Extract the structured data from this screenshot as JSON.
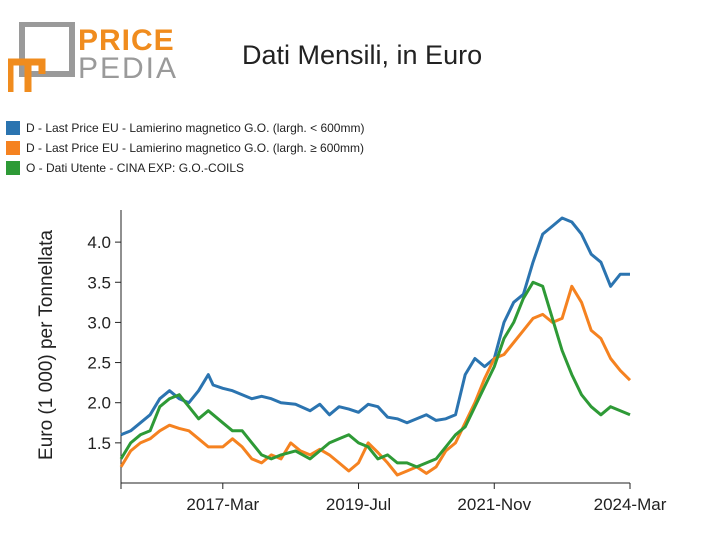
{
  "logo": {
    "line1": "PRICE",
    "line2": "PEDIA",
    "accent_color": "#f08c1e",
    "grey_color": "#9a9a9a"
  },
  "title": "Dati Mensili, in Euro",
  "legend": [
    {
      "label": "D - Last Price EU - Lamierino magnetico G.O. (largh. < 600mm)",
      "color": "#2b74b0"
    },
    {
      "label": "D - Last Price EU - Lamierino magnetico G.O. (largh. ≥ 600mm)",
      "color": "#f58220"
    },
    {
      "label": "O - Dati Utente - CINA EXP: G.O.-COILS",
      "color": "#2e9a36"
    }
  ],
  "chart_data": {
    "type": "line",
    "title": "Dati Mensili, in Euro",
    "ylabel": "Euro (1 000) per Tonnellata",
    "xlabel": "",
    "ylim": [
      1.0,
      4.4
    ],
    "y_ticks": [
      "1.5",
      "2.0",
      "2.5",
      "3.0",
      "3.5",
      "4.0"
    ],
    "x_ticks": [
      {
        "label": "2017-Mar",
        "date": "2017-03"
      },
      {
        "label": "2019-Jul",
        "date": "2019-07"
      },
      {
        "label": "2021-Nov",
        "date": "2021-11"
      },
      {
        "label": "2024-Mar",
        "date": "2024-03"
      }
    ],
    "xlim": [
      "2015-06",
      "2024-03"
    ],
    "grid": false,
    "legend_position": "top-left",
    "series": [
      {
        "name": "D - Last Price EU - Lamierino magnetico G.O. (largh. < 600mm)",
        "color": "#2b74b0",
        "points": [
          [
            "2015-06",
            1.6
          ],
          [
            "2015-08",
            1.65
          ],
          [
            "2015-10",
            1.75
          ],
          [
            "2015-12",
            1.85
          ],
          [
            "2016-02",
            2.05
          ],
          [
            "2016-04",
            2.15
          ],
          [
            "2016-06",
            2.05
          ],
          [
            "2016-08",
            2.0
          ],
          [
            "2016-10",
            2.15
          ],
          [
            "2016-12",
            2.35
          ],
          [
            "2017-01",
            2.22
          ],
          [
            "2017-03",
            2.18
          ],
          [
            "2017-05",
            2.15
          ],
          [
            "2017-07",
            2.1
          ],
          [
            "2017-09",
            2.05
          ],
          [
            "2017-11",
            2.08
          ],
          [
            "2018-01",
            2.05
          ],
          [
            "2018-03",
            2.0
          ],
          [
            "2018-06",
            1.98
          ],
          [
            "2018-09",
            1.9
          ],
          [
            "2018-11",
            1.98
          ],
          [
            "2019-01",
            1.85
          ],
          [
            "2019-03",
            1.95
          ],
          [
            "2019-05",
            1.92
          ],
          [
            "2019-07",
            1.88
          ],
          [
            "2019-09",
            1.98
          ],
          [
            "2019-11",
            1.95
          ],
          [
            "2020-01",
            1.82
          ],
          [
            "2020-03",
            1.8
          ],
          [
            "2020-05",
            1.75
          ],
          [
            "2020-07",
            1.8
          ],
          [
            "2020-09",
            1.85
          ],
          [
            "2020-11",
            1.78
          ],
          [
            "2021-01",
            1.8
          ],
          [
            "2021-03",
            1.85
          ],
          [
            "2021-05",
            2.35
          ],
          [
            "2021-07",
            2.55
          ],
          [
            "2021-09",
            2.45
          ],
          [
            "2021-11",
            2.55
          ],
          [
            "2022-01",
            3.0
          ],
          [
            "2022-03",
            3.25
          ],
          [
            "2022-05",
            3.35
          ],
          [
            "2022-07",
            3.75
          ],
          [
            "2022-09",
            4.1
          ],
          [
            "2022-11",
            4.2
          ],
          [
            "2023-01",
            4.3
          ],
          [
            "2023-03",
            4.25
          ],
          [
            "2023-05",
            4.1
          ],
          [
            "2023-07",
            3.85
          ],
          [
            "2023-09",
            3.75
          ],
          [
            "2023-11",
            3.45
          ],
          [
            "2024-01",
            3.6
          ],
          [
            "2024-03",
            3.6
          ]
        ]
      },
      {
        "name": "D - Last Price EU - Lamierino magnetico G.O. (largh. ≥ 600mm)",
        "color": "#f58220",
        "points": [
          [
            "2015-06",
            1.2
          ],
          [
            "2015-08",
            1.4
          ],
          [
            "2015-10",
            1.5
          ],
          [
            "2015-12",
            1.55
          ],
          [
            "2016-02",
            1.65
          ],
          [
            "2016-04",
            1.72
          ],
          [
            "2016-06",
            1.68
          ],
          [
            "2016-08",
            1.65
          ],
          [
            "2016-10",
            1.55
          ],
          [
            "2016-12",
            1.45
          ],
          [
            "2017-03",
            1.45
          ],
          [
            "2017-05",
            1.55
          ],
          [
            "2017-07",
            1.45
          ],
          [
            "2017-09",
            1.3
          ],
          [
            "2017-11",
            1.25
          ],
          [
            "2018-01",
            1.35
          ],
          [
            "2018-03",
            1.3
          ],
          [
            "2018-05",
            1.5
          ],
          [
            "2018-07",
            1.4
          ],
          [
            "2018-09",
            1.35
          ],
          [
            "2018-11",
            1.42
          ],
          [
            "2019-01",
            1.35
          ],
          [
            "2019-03",
            1.25
          ],
          [
            "2019-05",
            1.15
          ],
          [
            "2019-07",
            1.25
          ],
          [
            "2019-09",
            1.5
          ],
          [
            "2019-11",
            1.38
          ],
          [
            "2020-01",
            1.25
          ],
          [
            "2020-03",
            1.1
          ],
          [
            "2020-05",
            1.15
          ],
          [
            "2020-07",
            1.2
          ],
          [
            "2020-09",
            1.12
          ],
          [
            "2020-11",
            1.2
          ],
          [
            "2021-01",
            1.4
          ],
          [
            "2021-03",
            1.5
          ],
          [
            "2021-05",
            1.75
          ],
          [
            "2021-07",
            2.0
          ],
          [
            "2021-09",
            2.3
          ],
          [
            "2021-11",
            2.55
          ],
          [
            "2022-01",
            2.6
          ],
          [
            "2022-03",
            2.75
          ],
          [
            "2022-05",
            2.9
          ],
          [
            "2022-07",
            3.05
          ],
          [
            "2022-09",
            3.1
          ],
          [
            "2022-11",
            3.0
          ],
          [
            "2023-01",
            3.05
          ],
          [
            "2023-03",
            3.45
          ],
          [
            "2023-05",
            3.25
          ],
          [
            "2023-07",
            2.9
          ],
          [
            "2023-09",
            2.8
          ],
          [
            "2023-11",
            2.55
          ],
          [
            "2024-01",
            2.4
          ],
          [
            "2024-03",
            2.28
          ]
        ]
      },
      {
        "name": "O - Dati Utente - CINA EXP: G.O.-COILS",
        "color": "#2e9a36",
        "points": [
          [
            "2015-06",
            1.3
          ],
          [
            "2015-08",
            1.5
          ],
          [
            "2015-10",
            1.6
          ],
          [
            "2015-12",
            1.65
          ],
          [
            "2016-02",
            1.95
          ],
          [
            "2016-04",
            2.05
          ],
          [
            "2016-06",
            2.1
          ],
          [
            "2016-08",
            1.95
          ],
          [
            "2016-10",
            1.8
          ],
          [
            "2016-12",
            1.9
          ],
          [
            "2017-03",
            1.75
          ],
          [
            "2017-05",
            1.65
          ],
          [
            "2017-07",
            1.65
          ],
          [
            "2017-09",
            1.5
          ],
          [
            "2017-11",
            1.35
          ],
          [
            "2018-01",
            1.3
          ],
          [
            "2018-03",
            1.35
          ],
          [
            "2018-06",
            1.4
          ],
          [
            "2018-09",
            1.3
          ],
          [
            "2018-11",
            1.4
          ],
          [
            "2019-01",
            1.5
          ],
          [
            "2019-03",
            1.55
          ],
          [
            "2019-05",
            1.6
          ],
          [
            "2019-07",
            1.5
          ],
          [
            "2019-09",
            1.45
          ],
          [
            "2019-11",
            1.3
          ],
          [
            "2020-01",
            1.35
          ],
          [
            "2020-03",
            1.25
          ],
          [
            "2020-05",
            1.25
          ],
          [
            "2020-07",
            1.2
          ],
          [
            "2020-09",
            1.25
          ],
          [
            "2020-11",
            1.3
          ],
          [
            "2021-01",
            1.45
          ],
          [
            "2021-03",
            1.6
          ],
          [
            "2021-05",
            1.7
          ],
          [
            "2021-07",
            1.95
          ],
          [
            "2021-09",
            2.2
          ],
          [
            "2021-11",
            2.45
          ],
          [
            "2022-01",
            2.8
          ],
          [
            "2022-03",
            3.0
          ],
          [
            "2022-05",
            3.3
          ],
          [
            "2022-07",
            3.5
          ],
          [
            "2022-09",
            3.45
          ],
          [
            "2022-11",
            3.05
          ],
          [
            "2023-01",
            2.65
          ],
          [
            "2023-03",
            2.35
          ],
          [
            "2023-05",
            2.1
          ],
          [
            "2023-07",
            1.95
          ],
          [
            "2023-09",
            1.85
          ],
          [
            "2023-11",
            1.95
          ],
          [
            "2024-01",
            1.9
          ],
          [
            "2024-03",
            1.85
          ]
        ]
      }
    ]
  }
}
